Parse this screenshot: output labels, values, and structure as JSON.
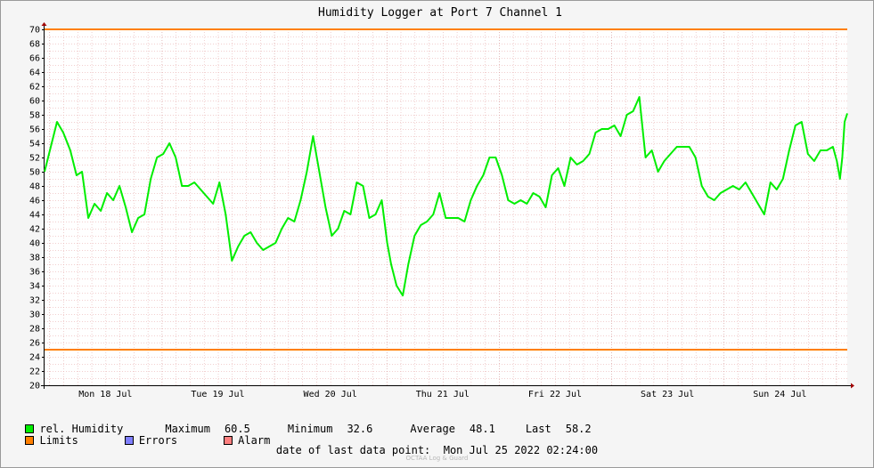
{
  "chart_data": {
    "type": "line",
    "title": "Humidity Logger at Port 7 Channel 1",
    "ylim": [
      20,
      70
    ],
    "y_ticks": [
      20,
      22,
      24,
      26,
      28,
      30,
      32,
      34,
      36,
      38,
      40,
      42,
      44,
      46,
      48,
      50,
      52,
      54,
      56,
      58,
      60,
      62,
      64,
      66,
      68,
      70
    ],
    "x_range": [
      "2022-07-17 23:00",
      "2022-07-25 02:24"
    ],
    "x_ticks": [
      {
        "label": "Mon 18 Jul",
        "date": "2022-07-18 12:00"
      },
      {
        "label": "Tue 19 Jul",
        "date": "2022-07-19 12:00"
      },
      {
        "label": "Wed 20 Jul",
        "date": "2022-07-20 12:00"
      },
      {
        "label": "Thu 21 Jul",
        "date": "2022-07-21 12:00"
      },
      {
        "label": "Fri 22 Jul",
        "date": "2022-07-22 12:00"
      },
      {
        "label": "Sat 23 Jul",
        "date": "2022-07-23 12:00"
      },
      {
        "label": "Sun 24 Jul",
        "date": "2022-07-24 12:00"
      }
    ],
    "grid": true,
    "limits": {
      "upper": 70,
      "lower": 25,
      "color": "#ff7f00"
    },
    "series": [
      {
        "name": "rel. Humidity",
        "color": "#00ee00",
        "points": [
          [
            "2022-07-17 23:00",
            50.0
          ],
          [
            "2022-07-18 00:20",
            53.5
          ],
          [
            "2022-07-18 01:40",
            57.0
          ],
          [
            "2022-07-18 03:00",
            55.5
          ],
          [
            "2022-07-18 04:30",
            53.0
          ],
          [
            "2022-07-18 05:50",
            49.5
          ],
          [
            "2022-07-18 07:00",
            50.0
          ],
          [
            "2022-07-18 08:20",
            43.5
          ],
          [
            "2022-07-18 09:40",
            45.5
          ],
          [
            "2022-07-18 11:00",
            44.5
          ],
          [
            "2022-07-18 12:20",
            47.0
          ],
          [
            "2022-07-18 13:40",
            46.0
          ],
          [
            "2022-07-18 15:00",
            48.0
          ],
          [
            "2022-07-18 16:20",
            45.0
          ],
          [
            "2022-07-18 17:40",
            41.5
          ],
          [
            "2022-07-18 19:00",
            43.5
          ],
          [
            "2022-07-18 20:20",
            44.0
          ],
          [
            "2022-07-18 21:40",
            49.0
          ],
          [
            "2022-07-18 23:00",
            52.0
          ],
          [
            "2022-07-19 00:20",
            52.5
          ],
          [
            "2022-07-19 01:40",
            54.0
          ],
          [
            "2022-07-19 03:00",
            52.0
          ],
          [
            "2022-07-19 04:20",
            48.0
          ],
          [
            "2022-07-19 05:40",
            48.0
          ],
          [
            "2022-07-19 07:00",
            48.5
          ],
          [
            "2022-07-19 08:20",
            47.5
          ],
          [
            "2022-07-19 09:40",
            46.5
          ],
          [
            "2022-07-19 11:00",
            45.5
          ],
          [
            "2022-07-19 12:20",
            48.5
          ],
          [
            "2022-07-19 13:40",
            44.0
          ],
          [
            "2022-07-19 15:00",
            37.5
          ],
          [
            "2022-07-19 16:20",
            39.5
          ],
          [
            "2022-07-19 17:40",
            41.0
          ],
          [
            "2022-07-19 19:00",
            41.5
          ],
          [
            "2022-07-19 20:20",
            40.0
          ],
          [
            "2022-07-19 21:40",
            39.0
          ],
          [
            "2022-07-19 23:00",
            39.5
          ],
          [
            "2022-07-20 00:20",
            40.0
          ],
          [
            "2022-07-20 01:40",
            42.0
          ],
          [
            "2022-07-20 03:00",
            43.5
          ],
          [
            "2022-07-20 04:20",
            43.0
          ],
          [
            "2022-07-20 05:40",
            46.0
          ],
          [
            "2022-07-20 07:00",
            50.0
          ],
          [
            "2022-07-20 08:20",
            55.0
          ],
          [
            "2022-07-20 09:40",
            50.0
          ],
          [
            "2022-07-20 11:00",
            45.0
          ],
          [
            "2022-07-20 12:20",
            41.0
          ],
          [
            "2022-07-20 13:40",
            42.0
          ],
          [
            "2022-07-20 15:00",
            44.5
          ],
          [
            "2022-07-20 16:20",
            44.0
          ],
          [
            "2022-07-20 17:40",
            48.5
          ],
          [
            "2022-07-20 19:00",
            48.0
          ],
          [
            "2022-07-20 20:20",
            43.5
          ],
          [
            "2022-07-20 21:40",
            44.0
          ],
          [
            "2022-07-20 23:00",
            46.0
          ],
          [
            "2022-07-21 00:10",
            40.0
          ],
          [
            "2022-07-21 01:00",
            37.0
          ],
          [
            "2022-07-21 02:10",
            34.0
          ],
          [
            "2022-07-21 03:30",
            32.6
          ],
          [
            "2022-07-21 04:40",
            37.0
          ],
          [
            "2022-07-21 06:00",
            41.0
          ],
          [
            "2022-07-21 07:20",
            42.5
          ],
          [
            "2022-07-21 08:40",
            43.0
          ],
          [
            "2022-07-21 10:00",
            44.0
          ],
          [
            "2022-07-21 11:20",
            47.0
          ],
          [
            "2022-07-21 12:40",
            43.5
          ],
          [
            "2022-07-21 14:00",
            43.5
          ],
          [
            "2022-07-21 15:20",
            43.5
          ],
          [
            "2022-07-21 16:40",
            43.0
          ],
          [
            "2022-07-21 18:00",
            46.0
          ],
          [
            "2022-07-21 19:20",
            48.0
          ],
          [
            "2022-07-21 20:40",
            49.5
          ],
          [
            "2022-07-21 22:00",
            52.0
          ],
          [
            "2022-07-21 23:20",
            52.0
          ],
          [
            "2022-07-22 00:40",
            49.5
          ],
          [
            "2022-07-22 02:00",
            46.0
          ],
          [
            "2022-07-22 03:20",
            45.5
          ],
          [
            "2022-07-22 04:40",
            46.0
          ],
          [
            "2022-07-22 06:00",
            45.5
          ],
          [
            "2022-07-22 07:20",
            47.0
          ],
          [
            "2022-07-22 08:40",
            46.5
          ],
          [
            "2022-07-22 10:00",
            45.0
          ],
          [
            "2022-07-22 11:20",
            49.5
          ],
          [
            "2022-07-22 12:40",
            50.5
          ],
          [
            "2022-07-22 14:00",
            48.0
          ],
          [
            "2022-07-22 15:20",
            52.0
          ],
          [
            "2022-07-22 16:40",
            51.0
          ],
          [
            "2022-07-22 18:00",
            51.5
          ],
          [
            "2022-07-22 19:20",
            52.5
          ],
          [
            "2022-07-22 20:40",
            55.5
          ],
          [
            "2022-07-22 22:00",
            56.0
          ],
          [
            "2022-07-22 23:20",
            56.0
          ],
          [
            "2022-07-23 00:40",
            56.5
          ],
          [
            "2022-07-23 02:00",
            55.0
          ],
          [
            "2022-07-23 03:20",
            58.0
          ],
          [
            "2022-07-23 04:40",
            58.5
          ],
          [
            "2022-07-23 06:00",
            60.5
          ],
          [
            "2022-07-23 07:20",
            52.0
          ],
          [
            "2022-07-23 08:40",
            53.0
          ],
          [
            "2022-07-23 10:00",
            50.0
          ],
          [
            "2022-07-23 11:20",
            51.5
          ],
          [
            "2022-07-23 12:40",
            52.5
          ],
          [
            "2022-07-23 14:00",
            53.5
          ],
          [
            "2022-07-23 15:20",
            53.5
          ],
          [
            "2022-07-23 16:40",
            53.5
          ],
          [
            "2022-07-23 18:00",
            52.0
          ],
          [
            "2022-07-23 19:20",
            48.0
          ],
          [
            "2022-07-23 20:40",
            46.5
          ],
          [
            "2022-07-23 22:00",
            46.0
          ],
          [
            "2022-07-23 23:20",
            47.0
          ],
          [
            "2022-07-24 00:40",
            47.5
          ],
          [
            "2022-07-24 02:00",
            48.0
          ],
          [
            "2022-07-24 03:20",
            47.5
          ],
          [
            "2022-07-24 04:40",
            48.5
          ],
          [
            "2022-07-24 06:00",
            47.0
          ],
          [
            "2022-07-24 07:20",
            45.5
          ],
          [
            "2022-07-24 08:40",
            44.0
          ],
          [
            "2022-07-24 10:00",
            48.5
          ],
          [
            "2022-07-24 11:20",
            47.5
          ],
          [
            "2022-07-24 12:40",
            49.0
          ],
          [
            "2022-07-24 14:00",
            53.0
          ],
          [
            "2022-07-24 15:20",
            56.5
          ],
          [
            "2022-07-24 16:40",
            57.0
          ],
          [
            "2022-07-24 18:00",
            52.5
          ],
          [
            "2022-07-24 19:20",
            51.5
          ],
          [
            "2022-07-24 20:40",
            53.0
          ],
          [
            "2022-07-24 22:00",
            53.0
          ],
          [
            "2022-07-24 23:20",
            53.5
          ],
          [
            "2022-07-25 00:10",
            51.5
          ],
          [
            "2022-07-25 00:50",
            49.0
          ],
          [
            "2022-07-25 01:20",
            52.0
          ],
          [
            "2022-07-25 01:50",
            57.0
          ],
          [
            "2022-07-25 02:24",
            58.2
          ]
        ]
      }
    ]
  },
  "legend": {
    "series_label": "rel. Humidity",
    "maximum_label": "Maximum",
    "maximum_value": "60.5",
    "minimum_label": "Minimum",
    "minimum_value": "32.6",
    "average_label": "Average",
    "average_value": "48.1",
    "last_label": "Last",
    "last_value": "58.2",
    "limits_label": "Limits",
    "errors_label": "Errors",
    "alarm_label": "Alarm",
    "colors": {
      "humidity": "#00ee00",
      "limits": "#ff7f00",
      "errors": "#7f7fff",
      "alarm": "#ff7f7f"
    }
  },
  "footer": {
    "last_point_label": "date of last data point:",
    "last_point_value": "Mon Jul 25 2022 02:24:00",
    "credit": "OCTAA Log & Guard"
  }
}
